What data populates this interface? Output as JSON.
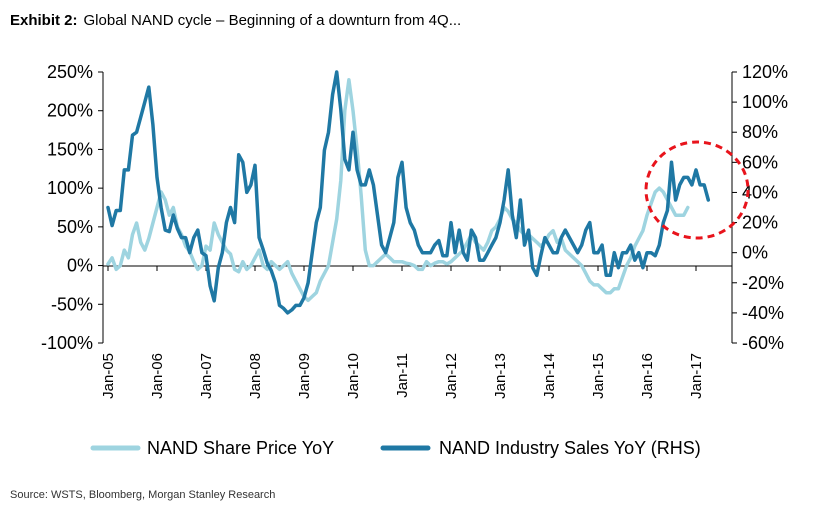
{
  "title": {
    "lead": "Exhibit 2:",
    "text": "Global NAND cycle – Beginning of a downturn from 4Q..."
  },
  "source": "Source: WSTS, Bloomberg, Morgan Stanley Research",
  "colors": {
    "share_price": "#9ed4e0",
    "industry_sales": "#1f78a4",
    "circle": "#e8141c"
  },
  "chart_data": {
    "type": "line",
    "x_tick_labels": [
      "Jan-05",
      "Jan-06",
      "Jan-07",
      "Jan-08",
      "Jan-09",
      "Jan-10",
      "Jan-11",
      "Jan-12",
      "Jan-13",
      "Jan-14",
      "Jan-15",
      "Jan-16",
      "Jan-17"
    ],
    "left_axis": {
      "ylim": [
        -100,
        250
      ],
      "tick_values": [
        -100,
        -50,
        0,
        50,
        100,
        150,
        200,
        250
      ],
      "tick_labels": [
        "-100%",
        "-50%",
        "0%",
        "50%",
        "100%",
        "150%",
        "200%",
        "250%"
      ]
    },
    "right_axis": {
      "ylim": [
        -60,
        120
      ],
      "tick_values": [
        -60,
        -40,
        -20,
        0,
        20,
        40,
        60,
        80,
        100,
        120
      ],
      "tick_labels": [
        "-60%",
        "-40%",
        "-20%",
        "0%",
        "20%",
        "40%",
        "60%",
        "80%",
        "100%",
        "120%"
      ]
    },
    "annotation": "dashed red circle highlighting 2017",
    "legend_position": "bottom",
    "series": [
      {
        "name": "NAND Share Price YoY",
        "axis": "left",
        "color": "#9ed4e0",
        "x_start": "Jan-05",
        "frequency": "monthly",
        "values": [
          2,
          10,
          -5,
          0,
          20,
          10,
          40,
          55,
          30,
          20,
          35,
          55,
          75,
          95,
          85,
          65,
          75,
          50,
          40,
          25,
          18,
          5,
          -5,
          0,
          25,
          20,
          55,
          40,
          30,
          20,
          15,
          -5,
          -8,
          5,
          -5,
          0,
          10,
          20,
          0,
          -5,
          5,
          0,
          -5,
          0,
          5,
          -10,
          -20,
          -30,
          -40,
          -45,
          -40,
          -35,
          -20,
          -10,
          0,
          30,
          60,
          110,
          200,
          240,
          200,
          150,
          90,
          20,
          0,
          0,
          5,
          10,
          15,
          10,
          5,
          5,
          5,
          3,
          2,
          0,
          -5,
          -5,
          5,
          0,
          3,
          5,
          5,
          2,
          5,
          10,
          15,
          20,
          30,
          40,
          30,
          25,
          20,
          30,
          45,
          50,
          60,
          75,
          70,
          60,
          55,
          45,
          40,
          40,
          35,
          30,
          25,
          30,
          40,
          45,
          30,
          35,
          20,
          15,
          10,
          5,
          0,
          -10,
          -20,
          -25,
          -25,
          -30,
          -35,
          -35,
          -30,
          -30,
          -15,
          0,
          10,
          25,
          35,
          45,
          65,
          80,
          95,
          100,
          95,
          85,
          75,
          65,
          65,
          65,
          75
        ]
      },
      {
        "name": "NAND Industry Sales YoY (RHS)",
        "axis": "right",
        "color": "#1f78a4",
        "x_start": "Jan-05",
        "frequency": "monthly",
        "values": [
          30,
          18,
          28,
          28,
          55,
          55,
          78,
          80,
          90,
          100,
          110,
          85,
          50,
          30,
          15,
          14,
          25,
          16,
          10,
          10,
          0,
          10,
          15,
          0,
          -2,
          -22,
          -32,
          -10,
          0,
          20,
          30,
          20,
          65,
          60,
          40,
          45,
          58,
          10,
          2,
          -7,
          -12,
          -20,
          -35,
          -37,
          -40,
          -38,
          -35,
          -35,
          -30,
          -20,
          0,
          20,
          30,
          68,
          80,
          105,
          120,
          95,
          62,
          55,
          80,
          55,
          45,
          45,
          55,
          45,
          25,
          5,
          0,
          10,
          20,
          50,
          60,
          30,
          20,
          15,
          5,
          0,
          0,
          0,
          5,
          8,
          -2,
          -2,
          20,
          0,
          15,
          0,
          -5,
          15,
          10,
          -5,
          -5,
          0,
          5,
          10,
          20,
          35,
          55,
          25,
          10,
          35,
          5,
          15,
          -10,
          -15,
          -2,
          10,
          5,
          0,
          0,
          10,
          15,
          10,
          5,
          0,
          5,
          15,
          20,
          0,
          0,
          5,
          -15,
          -15,
          0,
          -10,
          0,
          0,
          5,
          -5,
          0,
          -10,
          0,
          0,
          -2,
          5,
          20,
          28,
          60,
          35,
          45,
          50,
          50,
          45,
          55,
          45,
          45,
          35
        ]
      }
    ]
  },
  "legend": [
    {
      "label": "NAND Share Price YoY",
      "color": "#9ed4e0"
    },
    {
      "label": "NAND Industry Sales YoY (RHS)",
      "color": "#1f78a4"
    }
  ]
}
